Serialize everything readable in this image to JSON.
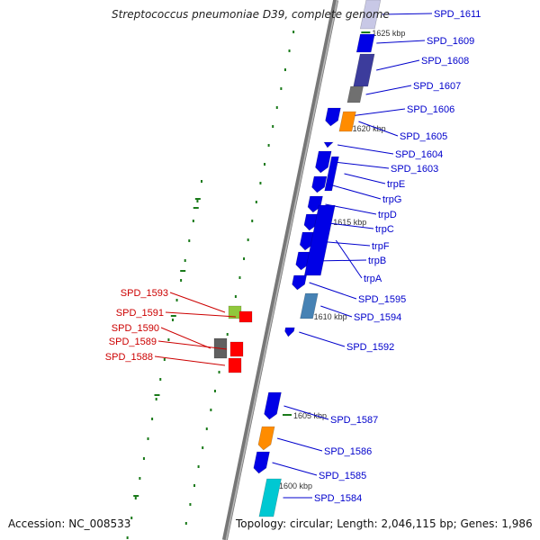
{
  "title": "Streptococcus pneumoniae D39, complete genome",
  "footer": {
    "accession": "Accession: NC_008533",
    "topology": "Topology: circular; Length: 2,046,115 bp; Genes: 1,986"
  },
  "colors": {
    "forward_label": "#0000cc",
    "reverse_label": "#cc0000",
    "backbone": "#888888",
    "forward_gene": "#0000e6",
    "reverse_gene": "#ff0000",
    "tick": "#1a7a1a"
  },
  "scale_ticks": [
    "1625 kbp",
    "1620 kbp",
    "1615 kbp",
    "1610 kbp",
    "1605 kbp",
    "1600 kbp"
  ],
  "forward_genes": [
    {
      "label": "SPD_1611",
      "color": "#c8c8e6"
    },
    {
      "label": "SPD_1609",
      "color": "#0000e6"
    },
    {
      "label": "SPD_1608",
      "color": "#3c3c9c"
    },
    {
      "label": "SPD_1607",
      "color": "#707070"
    },
    {
      "label": "SPD_1606",
      "color": "#0000e6"
    },
    {
      "label": "SPD_1605",
      "color": "#ff8c00"
    },
    {
      "label": "SPD_1604",
      "color": "#0000e6"
    },
    {
      "label": "SPD_1603",
      "color": "#0000e6"
    },
    {
      "label": "trpE",
      "color": "#0000e6"
    },
    {
      "label": "trpG",
      "color": "#0000e6"
    },
    {
      "label": "trpD",
      "color": "#0000e6"
    },
    {
      "label": "trpC",
      "color": "#0000e6"
    },
    {
      "label": "trpF",
      "color": "#0000e6"
    },
    {
      "label": "trpB",
      "color": "#0000e6"
    },
    {
      "label": "trpA",
      "color": "#0000e6"
    },
    {
      "label": "SPD_1595",
      "color": "#0000e6"
    },
    {
      "label": "SPD_1594",
      "color": "#4682b4"
    },
    {
      "label": "SPD_1592",
      "color": "#0000e6"
    },
    {
      "label": "SPD_1587",
      "color": "#0000e6"
    },
    {
      "label": "SPD_1586",
      "color": "#ff8c00"
    },
    {
      "label": "SPD_1585",
      "color": "#0000e6"
    },
    {
      "label": "SPD_1584",
      "color": "#00c8d2"
    }
  ],
  "reverse_genes": [
    {
      "label": "SPD_1593",
      "color": "#90c83c"
    },
    {
      "label": "SPD_1591",
      "color": "#ff0000"
    },
    {
      "label": "SPD_1590",
      "color": "#606060"
    },
    {
      "label": "SPD_1589",
      "color": "#ff0000"
    },
    {
      "label": "SPD_1588",
      "color": "#ff0000"
    }
  ]
}
